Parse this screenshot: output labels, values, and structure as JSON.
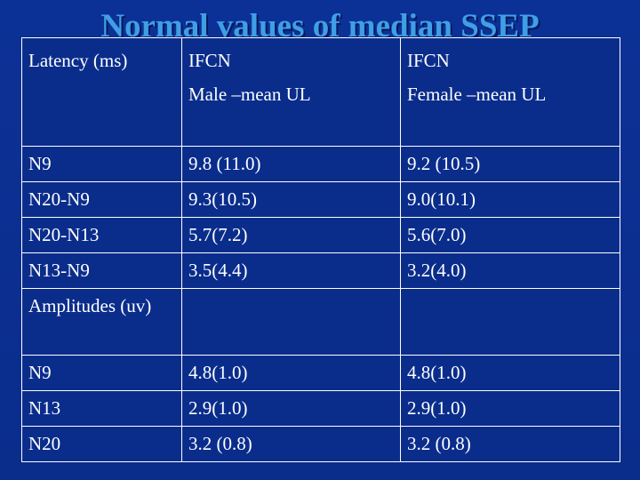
{
  "slide": {
    "title": "Normal values of median SSEP"
  },
  "table": {
    "header": {
      "col1": "Latency (ms)",
      "col2_line1": "IFCN",
      "col2_line2": "Male –mean UL",
      "col3_line1": "IFCN",
      "col3_line2": "Female –mean UL"
    },
    "rows": [
      {
        "label": "N9",
        "male": "9.8 (11.0)",
        "female": "9.2 (10.5)"
      },
      {
        "label": "N20-N9",
        "male": "9.3(10.5)",
        "female": "9.0(10.1)"
      },
      {
        "label": "N20-N13",
        "male": "5.7(7.2)",
        "female": "5.6(7.0)"
      },
      {
        "label": "N13-N9",
        "male": "3.5(4.4)",
        "female": "3.2(4.0)"
      },
      {
        "label": "Amplitudes (uv)",
        "male": "",
        "female": ""
      },
      {
        "label": "N9",
        "male": "4.8(1.0)",
        "female": "4.8(1.0)"
      },
      {
        "label": "N13",
        "male": "2.9(1.0)",
        "female": "2.9(1.0)"
      },
      {
        "label": "N20",
        "male": "3.2 (0.8)",
        "female": "3.2 (0.8)"
      }
    ]
  }
}
